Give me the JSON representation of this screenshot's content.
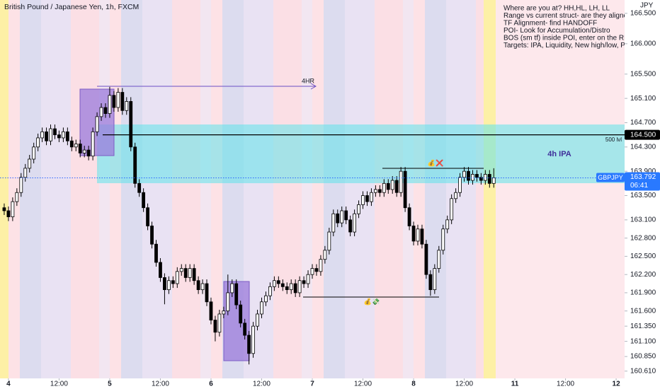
{
  "chart_data": {
    "type": "candlestick",
    "title": "British Pound / Japanese Yen, 1h, FXCM",
    "y_axis_label": "JPY",
    "colors": {
      "up": "#ffffff",
      "down": "#000000",
      "outline": "#000000"
    },
    "grid": false,
    "xlim": [
      -1,
      147
    ],
    "xticks": [
      {
        "value": 1,
        "label": "4"
      },
      {
        "value": 13,
        "label": "12:00"
      },
      {
        "value": 25,
        "label": "5"
      },
      {
        "value": 37,
        "label": "12:00"
      },
      {
        "value": 49,
        "label": "6"
      },
      {
        "value": 61,
        "label": "12:00"
      },
      {
        "value": 73,
        "label": "7"
      },
      {
        "value": 85,
        "label": "12:00"
      },
      {
        "value": 97,
        "label": "8"
      },
      {
        "value": 109,
        "label": "12:00"
      },
      {
        "value": 121,
        "label": "11"
      },
      {
        "value": 133,
        "label": "12:00"
      },
      {
        "value": 145,
        "label": "12"
      }
    ],
    "ylim": [
      160.49,
      166.72
    ],
    "yticks": [
      {
        "value": 166.5,
        "label": "166.500"
      },
      {
        "value": 166,
        "label": "166.000"
      },
      {
        "value": 165.5,
        "label": "165.500"
      },
      {
        "value": 165.1,
        "label": "165.100"
      },
      {
        "value": 164.7,
        "label": "164.700"
      },
      {
        "value": 164.3,
        "label": "164.300"
      },
      {
        "value": 163.9,
        "label": "163.900"
      },
      {
        "value": 163.5,
        "label": "163.500"
      },
      {
        "value": 163.1,
        "label": "163.100"
      },
      {
        "value": 162.8,
        "label": "162.800"
      },
      {
        "value": 162.5,
        "label": "162.500"
      },
      {
        "value": 162.2,
        "label": "162.200"
      },
      {
        "value": 161.9,
        "label": "161.900"
      },
      {
        "value": 161.6,
        "label": "161.600"
      },
      {
        "value": 161.35,
        "label": "161.350"
      },
      {
        "value": 161.1,
        "label": "161.100"
      },
      {
        "value": 160.85,
        "label": "160.850"
      },
      {
        "value": 160.61,
        "label": "160.610"
      }
    ],
    "x": [
      0,
      1,
      2,
      3,
      4,
      5,
      6,
      7,
      8,
      9,
      10,
      11,
      12,
      13,
      14,
      15,
      16,
      17,
      18,
      19,
      20,
      21,
      22,
      23,
      24,
      25,
      26,
      27,
      28,
      29,
      30,
      31,
      32,
      33,
      34,
      35,
      36,
      37,
      38,
      39,
      40,
      41,
      42,
      43,
      44,
      45,
      46,
      47,
      48,
      49,
      50,
      51,
      52,
      53,
      54,
      55,
      56,
      57,
      58,
      59,
      60,
      61,
      62,
      63,
      64,
      65,
      66,
      67,
      68,
      69,
      70,
      71,
      72,
      73,
      74,
      75,
      76,
      77,
      78,
      79,
      80,
      81,
      82,
      83,
      84,
      85,
      86,
      87,
      88,
      89,
      90,
      91,
      92,
      93,
      94,
      95,
      96,
      97,
      98,
      99,
      100,
      101,
      102,
      103,
      104,
      105,
      106,
      107,
      108,
      109,
      110,
      111,
      112,
      113,
      114,
      115,
      116
    ],
    "candles": [
      [
        163.3,
        163.37,
        163.18,
        163.25
      ],
      [
        163.25,
        163.32,
        163.08,
        163.15
      ],
      [
        163.15,
        163.47,
        163.08,
        163.4
      ],
      [
        163.4,
        163.62,
        163.33,
        163.55
      ],
      [
        163.55,
        163.87,
        163.48,
        163.8
      ],
      [
        163.8,
        164.02,
        163.73,
        163.95
      ],
      [
        163.95,
        164.17,
        163.88,
        164.1
      ],
      [
        164.1,
        164.37,
        164.03,
        164.3
      ],
      [
        164.3,
        164.52,
        164.23,
        164.45
      ],
      [
        164.45,
        164.62,
        164.38,
        164.55
      ],
      [
        164.55,
        164.62,
        164.33,
        164.4
      ],
      [
        164.4,
        164.67,
        164.33,
        164.6
      ],
      [
        164.6,
        164.67,
        164.43,
        164.5
      ],
      [
        164.5,
        164.57,
        164.38,
        164.45
      ],
      [
        164.45,
        164.62,
        164.38,
        164.55
      ],
      [
        164.55,
        164.62,
        164.33,
        164.4
      ],
      [
        164.4,
        164.47,
        164.23,
        164.3
      ],
      [
        164.3,
        164.42,
        164.23,
        164.35
      ],
      [
        164.35,
        164.42,
        164.13,
        164.2
      ],
      [
        164.2,
        164.32,
        164.13,
        164.25
      ],
      [
        164.25,
        164.32,
        164.08,
        164.15
      ],
      [
        164.15,
        164.62,
        164.08,
        164.55
      ],
      [
        164.55,
        164.87,
        164.48,
        164.8
      ],
      [
        164.8,
        165.02,
        164.73,
        164.95
      ],
      [
        164.95,
        165.02,
        164.78,
        164.85
      ],
      [
        164.85,
        165.29,
        164.78,
        165.15
      ],
      [
        165.15,
        165.22,
        164.88,
        164.95
      ],
      [
        164.95,
        165.27,
        164.88,
        165.2
      ],
      [
        165.2,
        165.27,
        164.83,
        164.9
      ],
      [
        164.9,
        165.12,
        164.83,
        165.05
      ],
      [
        165.05,
        165.12,
        164.23,
        164.3
      ],
      [
        164.3,
        164.37,
        163.63,
        163.7
      ],
      [
        163.7,
        163.77,
        163.48,
        163.55
      ],
      [
        163.55,
        163.62,
        163.23,
        163.3
      ],
      [
        163.3,
        163.37,
        162.93,
        163.0
      ],
      [
        163.0,
        163.07,
        162.63,
        162.7
      ],
      [
        162.7,
        162.77,
        162.33,
        162.4
      ],
      [
        162.4,
        162.47,
        162.08,
        162.15
      ],
      [
        162.15,
        162.22,
        161.71,
        161.95
      ],
      [
        161.95,
        162.17,
        161.88,
        162.1
      ],
      [
        162.1,
        162.17,
        161.98,
        162.05
      ],
      [
        162.05,
        162.32,
        161.98,
        162.25
      ],
      [
        162.25,
        162.37,
        162.18,
        162.3
      ],
      [
        162.3,
        162.37,
        162.08,
        162.15
      ],
      [
        162.15,
        162.37,
        162.08,
        162.3
      ],
      [
        162.3,
        162.37,
        162.03,
        162.1
      ],
      [
        162.1,
        162.17,
        161.88,
        161.95
      ],
      [
        161.95,
        162.12,
        161.88,
        162.05
      ],
      [
        162.05,
        162.12,
        161.68,
        161.75
      ],
      [
        161.75,
        161.82,
        161.38,
        161.45
      ],
      [
        161.45,
        161.52,
        161.1,
        161.25
      ],
      [
        161.25,
        161.62,
        161.18,
        161.55
      ],
      [
        161.55,
        161.67,
        161.48,
        161.6
      ],
      [
        161.6,
        162.2,
        161.53,
        161.9
      ],
      [
        161.9,
        162.12,
        161.83,
        162.05
      ],
      [
        162.05,
        162.12,
        161.63,
        161.7
      ],
      [
        161.7,
        161.77,
        161.33,
        161.4
      ],
      [
        161.4,
        161.47,
        161.13,
        161.2
      ],
      [
        161.2,
        161.27,
        160.72,
        160.9
      ],
      [
        160.9,
        161.42,
        160.83,
        161.35
      ],
      [
        161.35,
        161.62,
        161.28,
        161.55
      ],
      [
        161.55,
        161.82,
        161.48,
        161.75
      ],
      [
        161.75,
        161.92,
        161.68,
        161.85
      ],
      [
        161.85,
        162.07,
        161.78,
        162.0
      ],
      [
        162.0,
        162.17,
        161.93,
        162.1
      ],
      [
        162.1,
        162.17,
        161.98,
        162.05
      ],
      [
        162.05,
        162.12,
        161.93,
        162.0
      ],
      [
        162.0,
        162.07,
        161.88,
        161.95
      ],
      [
        161.95,
        162.12,
        161.88,
        162.05
      ],
      [
        162.05,
        162.12,
        161.83,
        161.9
      ],
      [
        161.9,
        162.17,
        161.83,
        162.1
      ],
      [
        162.1,
        162.17,
        161.98,
        162.05
      ],
      [
        162.05,
        162.27,
        161.98,
        162.2
      ],
      [
        162.2,
        162.37,
        162.13,
        162.3
      ],
      [
        162.3,
        162.37,
        162.18,
        162.25
      ],
      [
        162.25,
        162.52,
        162.18,
        162.45
      ],
      [
        162.45,
        162.67,
        162.38,
        162.6
      ],
      [
        162.6,
        162.97,
        162.53,
        162.9
      ],
      [
        162.9,
        163.27,
        162.83,
        163.2
      ],
      [
        163.2,
        163.27,
        162.98,
        163.05
      ],
      [
        163.05,
        163.32,
        162.98,
        163.25
      ],
      [
        163.25,
        163.32,
        163.03,
        163.1
      ],
      [
        163.1,
        163.17,
        162.83,
        162.9
      ],
      [
        162.9,
        163.27,
        162.83,
        163.2
      ],
      [
        163.2,
        163.42,
        163.13,
        163.35
      ],
      [
        163.35,
        163.57,
        163.28,
        163.5
      ],
      [
        163.5,
        163.57,
        163.33,
        163.4
      ],
      [
        163.4,
        163.62,
        163.33,
        163.55
      ],
      [
        163.55,
        163.67,
        163.48,
        163.6
      ],
      [
        163.6,
        163.67,
        163.48,
        163.55
      ],
      [
        163.55,
        163.77,
        163.48,
        163.7
      ],
      [
        163.7,
        163.77,
        163.53,
        163.6
      ],
      [
        163.6,
        163.82,
        163.53,
        163.75
      ],
      [
        163.75,
        163.82,
        163.48,
        163.55
      ],
      [
        163.55,
        163.97,
        163.48,
        163.9
      ],
      [
        163.9,
        163.97,
        163.23,
        163.3
      ],
      [
        163.3,
        163.37,
        162.93,
        163.0
      ],
      [
        163.0,
        163.07,
        162.68,
        162.75
      ],
      [
        162.75,
        163.02,
        162.68,
        162.95
      ],
      [
        162.95,
        163.02,
        162.63,
        162.7
      ],
      [
        162.7,
        162.77,
        162.13,
        162.2
      ],
      [
        162.2,
        162.27,
        161.85,
        161.95
      ],
      [
        161.95,
        162.37,
        161.88,
        162.3
      ],
      [
        162.3,
        162.67,
        162.23,
        162.6
      ],
      [
        162.6,
        163.02,
        162.53,
        162.95
      ],
      [
        162.95,
        163.17,
        162.88,
        163.1
      ],
      [
        163.1,
        163.52,
        163.03,
        163.45
      ],
      [
        163.45,
        163.62,
        163.38,
        163.55
      ],
      [
        163.55,
        163.87,
        163.48,
        163.8
      ],
      [
        163.8,
        163.97,
        163.73,
        163.9
      ],
      [
        163.9,
        163.97,
        163.68,
        163.75
      ],
      [
        163.75,
        163.92,
        163.68,
        163.85
      ],
      [
        163.85,
        163.92,
        163.73,
        163.8
      ],
      [
        163.8,
        163.87,
        163.68,
        163.75
      ],
      [
        163.75,
        163.92,
        163.68,
        163.85
      ],
      [
        163.85,
        163.92,
        163.63,
        163.7
      ],
      [
        163.7,
        163.95,
        163.63,
        163.792
      ]
    ],
    "price_line": {
      "value": 164.5,
      "label": "164.500"
    },
    "price_line_label": "500 lvl",
    "last_price": 163.792,
    "symbol": "GBPJPY",
    "countdown": "06:41",
    "annotations": {
      "range_label": "4HR",
      "zone_label": "4h IPA",
      "top_marker": "💰❌",
      "bottom_marker": "💰💸",
      "note_lines": [
        "Where are you at? HH,HL, LH, LL",
        "Range vs current struct- are they aligned",
        "TF Alignment- find HANDOFF",
        "POI- Look for Accumulation/Distro",
        "BOS (sm tf) inside POI, enter on the RE",
        "Targets: IPA, Liquidity, New high/low, Pri"
      ]
    }
  }
}
